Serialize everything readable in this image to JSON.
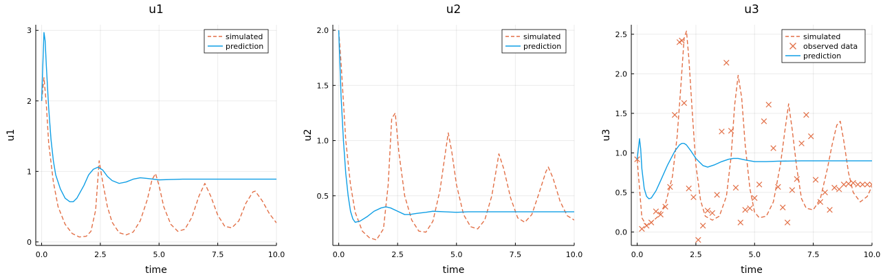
{
  "chart_data": [
    {
      "type": "line",
      "title": "u1",
      "xlabel": "time",
      "ylabel": "u1",
      "xlim": [
        -0.25,
        10.0
      ],
      "ylim": [
        -0.05,
        3.08
      ],
      "xticks": [
        0.0,
        2.5,
        5.0,
        7.5,
        10.0
      ],
      "xtick_labels": [
        "0.0",
        "2.5",
        "5.0",
        "7.5",
        "10.0"
      ],
      "yticks": [
        0,
        1,
        2,
        3
      ],
      "ytick_labels": [
        "0",
        "1",
        "2",
        "3"
      ],
      "grid": true,
      "legend_position": "top-right",
      "series": [
        {
          "name": "simulated",
          "style": "dashed",
          "color": "#e26f46",
          "x": [
            0,
            0.1,
            0.2,
            0.3,
            0.5,
            0.7,
            1.0,
            1.3,
            1.6,
            1.9,
            2.1,
            2.3,
            2.45,
            2.6,
            2.8,
            3.0,
            3.3,
            3.6,
            3.9,
            4.2,
            4.5,
            4.7,
            4.85,
            5.0,
            5.2,
            5.5,
            5.8,
            6.1,
            6.4,
            6.7,
            6.95,
            7.2,
            7.5,
            7.8,
            8.1,
            8.4,
            8.7,
            9.0,
            9.1,
            9.4,
            9.7,
            10.0
          ],
          "y": [
            2.0,
            2.33,
            1.95,
            1.4,
            0.85,
            0.5,
            0.25,
            0.12,
            0.07,
            0.08,
            0.15,
            0.45,
            1.15,
            0.85,
            0.5,
            0.28,
            0.13,
            0.1,
            0.14,
            0.3,
            0.6,
            0.88,
            0.97,
            0.8,
            0.5,
            0.25,
            0.15,
            0.18,
            0.35,
            0.65,
            0.83,
            0.65,
            0.38,
            0.22,
            0.2,
            0.3,
            0.55,
            0.71,
            0.72,
            0.58,
            0.4,
            0.27
          ]
        },
        {
          "name": "prediction",
          "style": "solid",
          "color": "#0e9ee5",
          "x": [
            0,
            0.05,
            0.1,
            0.15,
            0.2,
            0.3,
            0.4,
            0.5,
            0.6,
            0.8,
            1.0,
            1.2,
            1.35,
            1.5,
            1.8,
            2.0,
            2.2,
            2.4,
            2.6,
            2.8,
            3.0,
            3.3,
            3.6,
            3.9,
            4.2,
            4.5,
            5.0,
            5.5,
            6.0,
            7.0,
            8.0,
            9.0,
            10.0
          ],
          "y": [
            2.0,
            2.5,
            2.97,
            2.85,
            2.5,
            1.9,
            1.45,
            1.15,
            0.95,
            0.75,
            0.62,
            0.57,
            0.57,
            0.62,
            0.8,
            0.95,
            1.03,
            1.06,
            1.02,
            0.93,
            0.87,
            0.83,
            0.85,
            0.89,
            0.91,
            0.9,
            0.88,
            0.885,
            0.89,
            0.89,
            0.89,
            0.89,
            0.89
          ]
        }
      ]
    },
    {
      "type": "line",
      "title": "u2",
      "xlabel": "time",
      "ylabel": "u2",
      "xlim": [
        -0.25,
        10.0
      ],
      "ylim": [
        0.05,
        2.05
      ],
      "xticks": [
        0.0,
        2.5,
        5.0,
        7.5,
        10.0
      ],
      "xtick_labels": [
        "0.0",
        "2.5",
        "5.0",
        "7.5",
        "10.0"
      ],
      "yticks": [
        0.5,
        1.0,
        1.5,
        2.0
      ],
      "ytick_labels": [
        "0.5",
        "1.0",
        "1.5",
        "2.0"
      ],
      "grid": true,
      "legend_position": "top-right",
      "series": [
        {
          "name": "simulated",
          "style": "dashed",
          "color": "#e26f46",
          "x": [
            0,
            0.1,
            0.2,
            0.3,
            0.5,
            0.7,
            1.0,
            1.3,
            1.6,
            1.9,
            2.1,
            2.25,
            2.4,
            2.55,
            2.8,
            3.1,
            3.4,
            3.7,
            4.0,
            4.3,
            4.5,
            4.65,
            4.8,
            5.0,
            5.3,
            5.6,
            5.9,
            6.2,
            6.5,
            6.7,
            6.8,
            7.0,
            7.3,
            7.6,
            7.9,
            8.2,
            8.5,
            8.8,
            8.9,
            9.1,
            9.4,
            9.7,
            10.0
          ],
          "y": [
            2.0,
            1.7,
            1.35,
            1.0,
            0.6,
            0.35,
            0.18,
            0.12,
            0.1,
            0.2,
            0.6,
            1.2,
            1.25,
            0.9,
            0.5,
            0.28,
            0.18,
            0.17,
            0.27,
            0.55,
            0.85,
            1.07,
            0.9,
            0.6,
            0.33,
            0.22,
            0.2,
            0.28,
            0.5,
            0.75,
            0.88,
            0.75,
            0.48,
            0.3,
            0.26,
            0.33,
            0.52,
            0.72,
            0.76,
            0.66,
            0.45,
            0.32,
            0.28
          ]
        },
        {
          "name": "prediction",
          "style": "solid",
          "color": "#0e9ee5",
          "x": [
            0,
            0.05,
            0.1,
            0.2,
            0.3,
            0.4,
            0.5,
            0.6,
            0.7,
            0.9,
            1.2,
            1.5,
            1.8,
            2.0,
            2.2,
            2.5,
            2.8,
            3.0,
            3.3,
            3.7,
            4.0,
            4.5,
            5.0,
            5.5,
            6.0,
            7.0,
            8.0,
            9.0,
            10.0
          ],
          "y": [
            2.0,
            1.7,
            1.4,
            1.0,
            0.7,
            0.5,
            0.36,
            0.29,
            0.26,
            0.27,
            0.31,
            0.36,
            0.39,
            0.4,
            0.39,
            0.36,
            0.33,
            0.33,
            0.34,
            0.35,
            0.36,
            0.355,
            0.35,
            0.355,
            0.355,
            0.355,
            0.355,
            0.355,
            0.355
          ]
        }
      ]
    },
    {
      "type": "line",
      "title": "u3",
      "xlabel": "time",
      "ylabel": "u3",
      "xlim": [
        -0.25,
        10.0
      ],
      "ylim": [
        -0.17,
        2.62
      ],
      "xticks": [
        0.0,
        2.5,
        5.0,
        7.5,
        10.0
      ],
      "xtick_labels": [
        "0.0",
        "2.5",
        "5.0",
        "7.5",
        "10.0"
      ],
      "yticks": [
        0.0,
        0.5,
        1.0,
        1.5,
        2.0,
        2.5
      ],
      "ytick_labels": [
        "0.0",
        "0.5",
        "1.0",
        "1.5",
        "2.0",
        "2.5"
      ],
      "grid": true,
      "legend_position": "top-right",
      "series": [
        {
          "name": "simulated",
          "style": "dashed",
          "color": "#e26f46",
          "x": [
            0,
            0.1,
            0.2,
            0.4,
            0.6,
            0.9,
            1.2,
            1.5,
            1.7,
            1.85,
            2.0,
            2.1,
            2.2,
            2.35,
            2.5,
            2.7,
            2.9,
            3.2,
            3.5,
            3.8,
            4.0,
            4.15,
            4.3,
            4.45,
            4.6,
            4.8,
            5.0,
            5.2,
            5.5,
            5.8,
            6.1,
            6.3,
            6.45,
            6.6,
            6.8,
            7.0,
            7.2,
            7.5,
            7.8,
            8.1,
            8.3,
            8.5,
            8.65,
            8.8,
            9.0,
            9.2,
            9.5,
            9.8,
            10.0
          ],
          "y": [
            0.92,
            0.55,
            0.18,
            0.08,
            0.12,
            0.2,
            0.35,
            0.7,
            1.2,
            1.8,
            2.45,
            2.54,
            2.2,
            1.5,
            0.85,
            0.4,
            0.2,
            0.15,
            0.2,
            0.45,
            0.95,
            1.6,
            1.98,
            1.7,
            1.1,
            0.55,
            0.25,
            0.18,
            0.2,
            0.38,
            0.85,
            1.3,
            1.62,
            1.3,
            0.8,
            0.42,
            0.3,
            0.28,
            0.42,
            0.8,
            1.1,
            1.35,
            1.4,
            1.15,
            0.75,
            0.5,
            0.38,
            0.45,
            0.58
          ]
        },
        {
          "name": "observed data",
          "style": "markers",
          "marker": "x",
          "color": "#e26f46",
          "x": [
            0.0,
            0.2,
            0.4,
            0.6,
            0.8,
            1.0,
            1.2,
            1.4,
            1.6,
            1.8,
            1.9,
            2.0,
            2.2,
            2.4,
            2.6,
            2.8,
            3.0,
            3.2,
            3.4,
            3.6,
            3.8,
            4.0,
            4.2,
            4.4,
            4.6,
            4.8,
            5.0,
            5.2,
            5.4,
            5.6,
            5.8,
            6.0,
            6.2,
            6.4,
            6.6,
            6.8,
            7.0,
            7.2,
            7.4,
            7.6,
            7.8,
            8.0,
            8.2,
            8.4,
            8.6,
            8.8,
            9.0,
            9.2,
            9.4,
            9.6,
            9.8,
            10.0
          ],
          "y": [
            0.92,
            0.04,
            0.08,
            0.12,
            0.26,
            0.22,
            0.32,
            0.57,
            1.48,
            2.4,
            2.42,
            1.63,
            0.55,
            0.44,
            -0.1,
            0.08,
            0.27,
            0.24,
            0.47,
            1.27,
            2.14,
            1.28,
            0.56,
            0.12,
            0.28,
            0.3,
            0.43,
            0.6,
            1.4,
            1.61,
            1.06,
            0.57,
            0.31,
            0.12,
            0.53,
            0.67,
            1.12,
            1.48,
            1.21,
            0.66,
            0.38,
            0.5,
            0.28,
            0.56,
            0.54,
            0.6,
            0.61,
            0.62,
            0.6,
            0.6,
            0.6,
            0.6
          ]
        },
        {
          "name": "prediction",
          "style": "solid",
          "color": "#0e9ee5",
          "x": [
            0,
            0.05,
            0.1,
            0.15,
            0.2,
            0.3,
            0.4,
            0.5,
            0.6,
            0.8,
            1.0,
            1.3,
            1.6,
            1.8,
            1.9,
            2.0,
            2.1,
            2.3,
            2.5,
            2.8,
            3.0,
            3.3,
            3.6,
            3.9,
            4.1,
            4.3,
            4.6,
            5.0,
            5.5,
            6.0,
            7.0,
            8.0,
            9.0,
            10.0
          ],
          "y": [
            0.92,
            1.05,
            1.18,
            1.05,
            0.8,
            0.55,
            0.45,
            0.42,
            0.43,
            0.52,
            0.65,
            0.85,
            1.02,
            1.1,
            1.12,
            1.12,
            1.1,
            1.02,
            0.93,
            0.84,
            0.82,
            0.85,
            0.89,
            0.92,
            0.93,
            0.93,
            0.91,
            0.89,
            0.89,
            0.895,
            0.9,
            0.9,
            0.9,
            0.9
          ]
        }
      ]
    }
  ]
}
